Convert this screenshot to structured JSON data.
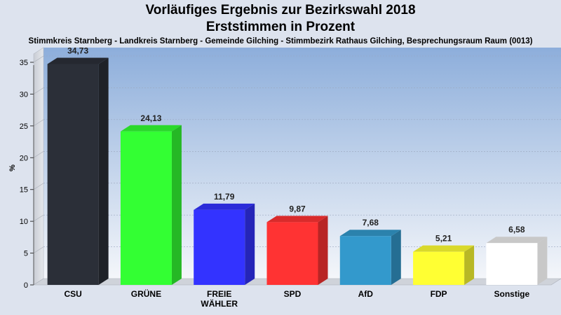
{
  "title_line1": "Vorläufiges Ergebnis zur Bezirkswahl 2018",
  "title_line2": "Erststimmen in Prozent",
  "subtitle": "Stimmkreis Starnberg - Landkreis Starnberg - Gemeinde Gilching - Stimmbezirk Rathaus Gilching, Besprechungsraum Raum  (0013)",
  "chart_data": {
    "type": "bar",
    "categories": [
      "CSU",
      "GRÜNE",
      "FREIE WÄHLER",
      "SPD",
      "AfD",
      "FDP",
      "Sonstige"
    ],
    "category_lines": [
      [
        "CSU"
      ],
      [
        "GRÜNE"
      ],
      [
        "FREIE",
        "WÄHLER"
      ],
      [
        "SPD"
      ],
      [
        "AfD"
      ],
      [
        "FDP"
      ],
      [
        "Sonstige"
      ]
    ],
    "values": [
      34.73,
      24.13,
      11.79,
      9.87,
      7.68,
      5.21,
      6.58
    ],
    "value_labels": [
      "34,73",
      "24,13",
      "11,79",
      "9,87",
      "7,68",
      "5,21",
      "6,58"
    ],
    "colors": [
      "#2b2f38",
      "#33ff33",
      "#3333ff",
      "#ff3333",
      "#3399cc",
      "#ffff33",
      "#ffffff"
    ],
    "ylabel": "%",
    "ylim": [
      0,
      35
    ],
    "yticks": [
      0,
      5,
      10,
      15,
      20,
      25,
      30,
      35
    ],
    "grid": true,
    "style": "3d"
  }
}
